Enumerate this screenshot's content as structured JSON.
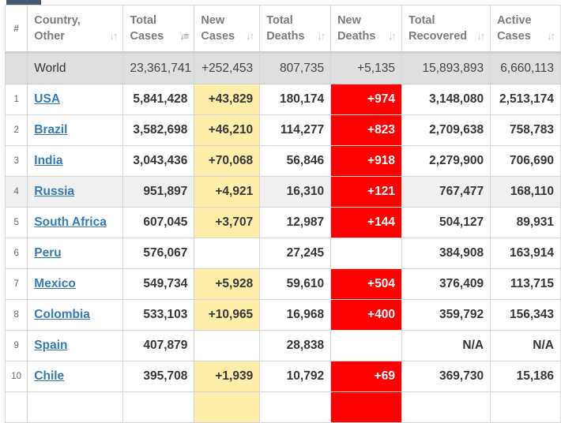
{
  "colors": {
    "new_cases_highlight": "#ffeeaa",
    "new_deaths_highlight": "#ff0000",
    "world_row_bg": "#dfdfdf",
    "link": "#337ab7",
    "header_text": "#7b7b7b"
  },
  "header": {
    "index": "#",
    "country": [
      "Country,",
      "Other"
    ],
    "total_cases": [
      "Total",
      "Cases"
    ],
    "new_cases": [
      "New",
      "Cases"
    ],
    "total_deaths": [
      "Total",
      "Deaths"
    ],
    "new_deaths": [
      "New",
      "Deaths"
    ],
    "total_recovered": [
      "Total",
      "Recovered"
    ],
    "active_cases": [
      "Active",
      "Cases"
    ],
    "sort_icon": "sort-icon",
    "sort_active_icon": "sort-desc-icon"
  },
  "world": {
    "country": "World",
    "total_cases": "23,361,741",
    "new_cases": "+252,453",
    "total_deaths": "807,735",
    "new_deaths": "+5,135",
    "total_recovered": "15,893,893",
    "active_cases": "6,660,113"
  },
  "rows": [
    {
      "idx": "1",
      "country": "USA",
      "total_cases": "5,841,428",
      "new_cases": "+43,829",
      "total_deaths": "180,174",
      "new_deaths": "+974",
      "total_recovered": "3,148,080",
      "active_cases": "2,513,174"
    },
    {
      "idx": "2",
      "country": "Brazil",
      "total_cases": "3,582,698",
      "new_cases": "+46,210",
      "total_deaths": "114,277",
      "new_deaths": "+823",
      "total_recovered": "2,709,638",
      "active_cases": "758,783"
    },
    {
      "idx": "3",
      "country": "India",
      "total_cases": "3,043,436",
      "new_cases": "+70,068",
      "total_deaths": "56,846",
      "new_deaths": "+918",
      "total_recovered": "2,279,900",
      "active_cases": "706,690"
    },
    {
      "idx": "4",
      "country": "Russia",
      "total_cases": "951,897",
      "new_cases": "+4,921",
      "total_deaths": "16,310",
      "new_deaths": "+121",
      "total_recovered": "767,477",
      "active_cases": "168,110"
    },
    {
      "idx": "5",
      "country": "South Africa",
      "total_cases": "607,045",
      "new_cases": "+3,707",
      "total_deaths": "12,987",
      "new_deaths": "+144",
      "total_recovered": "504,127",
      "active_cases": "89,931"
    },
    {
      "idx": "6",
      "country": "Peru",
      "total_cases": "576,067",
      "new_cases": "",
      "total_deaths": "27,245",
      "new_deaths": "",
      "total_recovered": "384,908",
      "active_cases": "163,914"
    },
    {
      "idx": "7",
      "country": "Mexico",
      "total_cases": "549,734",
      "new_cases": "+5,928",
      "total_deaths": "59,610",
      "new_deaths": "+504",
      "total_recovered": "376,409",
      "active_cases": "113,715"
    },
    {
      "idx": "8",
      "country": "Colombia",
      "total_cases": "533,103",
      "new_cases": "+10,965",
      "total_deaths": "16,968",
      "new_deaths": "+400",
      "total_recovered": "359,792",
      "active_cases": "156,343"
    },
    {
      "idx": "9",
      "country": "Spain",
      "total_cases": "407,879",
      "new_cases": "",
      "total_deaths": "28,838",
      "new_deaths": "",
      "total_recovered": "N/A",
      "active_cases": "N/A"
    },
    {
      "idx": "10",
      "country": "Chile",
      "total_cases": "395,708",
      "new_cases": "+1,939",
      "total_deaths": "10,792",
      "new_deaths": "+69",
      "total_recovered": "369,730",
      "active_cases": "15,186"
    },
    {
      "idx": "",
      "country": "",
      "total_cases": "",
      "new_cases": "",
      "total_deaths": "",
      "new_deaths": "",
      "total_recovered": "",
      "active_cases": ""
    }
  ]
}
